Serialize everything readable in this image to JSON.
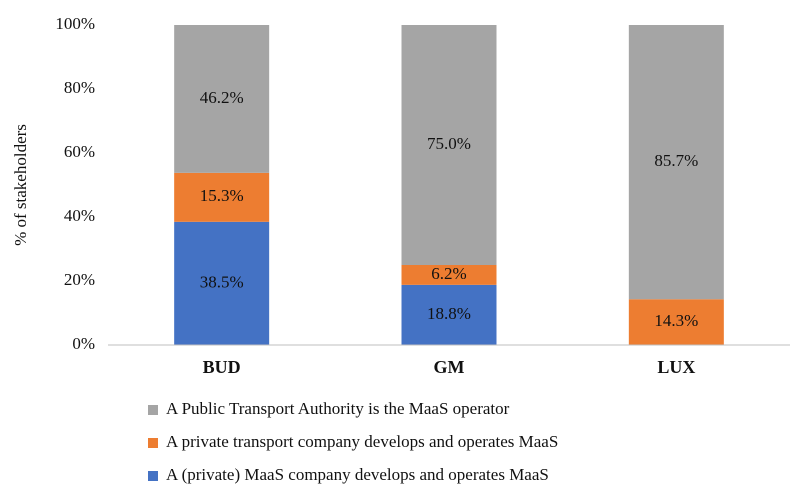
{
  "chart_data": {
    "type": "stacked_bar",
    "y_label": "% of stakeholders",
    "categories": [
      "BUD",
      "GM",
      "LUX"
    ],
    "series": [
      {
        "name": "A (private) MaaS company develops and operates MaaS",
        "color": "#4472c4",
        "values": [
          38.5,
          18.8,
          0
        ],
        "value_labels": [
          "38.5%",
          "18.8%",
          null
        ]
      },
      {
        "name": "A private transport company develops and operates MaaS",
        "color": "#ed7d31",
        "values": [
          15.3,
          6.2,
          14.3
        ],
        "value_labels": [
          "15.3%",
          "6.2%",
          "14.3%"
        ]
      },
      {
        "name": "A Public Transport Authority is the MaaS operator",
        "color": "#a5a5a5",
        "values": [
          46.2,
          75.0,
          85.7
        ],
        "value_labels": [
          "46.2%",
          "75.0%",
          "85.7%"
        ]
      }
    ],
    "ylim": [
      0,
      100
    ],
    "yticks": [
      {
        "value": 0,
        "label": "0%"
      },
      {
        "value": 20,
        "label": "20%"
      },
      {
        "value": 40,
        "label": "40%"
      },
      {
        "value": 60,
        "label": "60%"
      },
      {
        "value": 80,
        "label": "80%"
      },
      {
        "value": 100,
        "label": "100%"
      }
    ],
    "grid": false,
    "legend": "bottom"
  }
}
